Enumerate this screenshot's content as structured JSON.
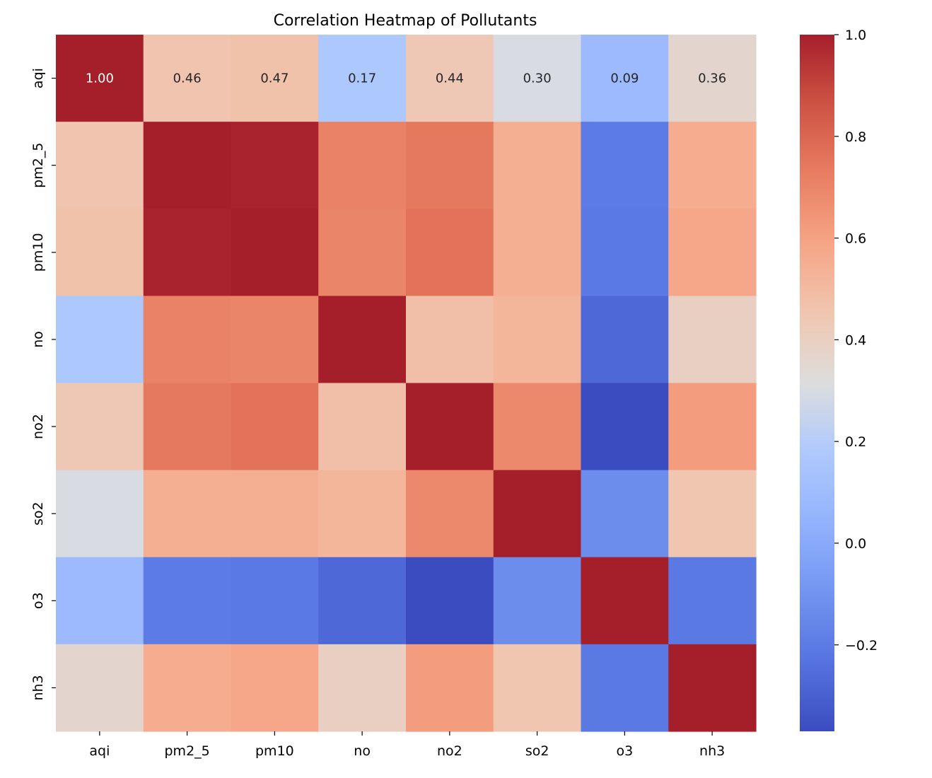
{
  "chart_data": {
    "type": "heatmap",
    "title": "Correlation Heatmap of Pollutants",
    "xlabel": "",
    "ylabel": "",
    "x_categories": [
      "aqi",
      "pm2_5",
      "pm10",
      "no",
      "no2",
      "so2",
      "o3",
      "nh3"
    ],
    "y_categories": [
      "aqi",
      "pm2_5",
      "pm10",
      "no",
      "no2",
      "so2",
      "o3",
      "nh3"
    ],
    "values": [
      [
        1.0,
        0.46,
        0.47,
        0.17,
        0.44,
        0.3,
        0.09,
        0.36
      ],
      [
        0.46,
        1.0,
        0.99,
        0.71,
        0.74,
        0.55,
        -0.2,
        0.56
      ],
      [
        0.47,
        0.99,
        1.0,
        0.7,
        0.76,
        0.55,
        -0.21,
        0.58
      ],
      [
        0.17,
        0.71,
        0.7,
        1.0,
        0.48,
        0.52,
        -0.27,
        0.4
      ],
      [
        0.44,
        0.74,
        0.76,
        0.48,
        1.0,
        0.69,
        -0.37,
        0.62
      ],
      [
        0.3,
        0.55,
        0.55,
        0.52,
        0.69,
        1.0,
        -0.13,
        0.45
      ],
      [
        0.09,
        -0.2,
        -0.21,
        -0.27,
        -0.37,
        -0.13,
        1.0,
        -0.21
      ],
      [
        0.36,
        0.56,
        0.58,
        0.4,
        0.62,
        0.45,
        -0.21,
        1.0
      ]
    ],
    "annotated_rows": [
      0
    ],
    "annotation_format": "2 decimals",
    "colormap": "coolwarm",
    "colorbar": {
      "vmin": -0.37,
      "vmax": 1.0,
      "ticks": [
        1.0,
        0.8,
        0.6,
        0.4,
        0.2,
        0.0,
        -0.2
      ],
      "tick_labels": [
        "1.0",
        "0.8",
        "0.6",
        "0.4",
        "0.2",
        "0.0",
        "−0.2"
      ]
    },
    "grid": false,
    "legend": "colorbar-right"
  }
}
